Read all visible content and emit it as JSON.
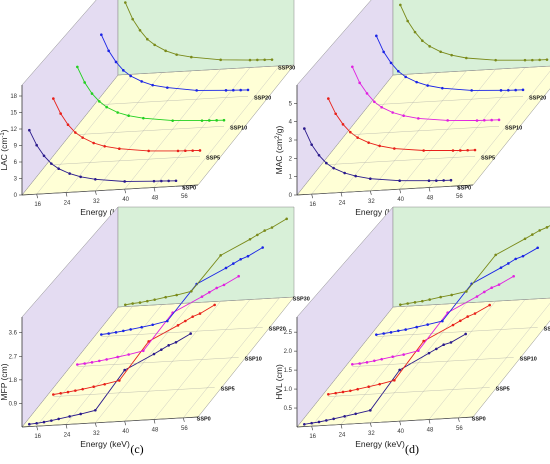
{
  "chart_data": [
    {
      "type": "line",
      "panel_label": "(a)",
      "xlabel": "Energy (keV)",
      "ylabel": "LAC (cm",
      "ylabel_sup": "-1",
      "ylabel_tail": ")",
      "ylim": [
        0,
        20
      ],
      "xticks": [
        "16",
        "24",
        "32",
        "40",
        "48",
        "56"
      ],
      "yticks": [
        "0",
        "3",
        "6",
        "9",
        "12",
        "15",
        "18"
      ],
      "x": [
        14,
        16,
        18,
        20,
        22,
        25,
        28,
        32,
        40,
        48,
        50,
        52,
        54
      ],
      "series": [
        {
          "name": "SSP0",
          "color": "#2a1a8c",
          "values": [
            11.7,
            8.9,
            6.9,
            5.4,
            4.4,
            3.4,
            2.7,
            2.1,
            1.4,
            1.15,
            1.1,
            1.05,
            1.0
          ]
        },
        {
          "name": "SSP5",
          "color": "#e8201a",
          "values": [
            12.0,
            9.2,
            7.1,
            5.6,
            4.6,
            3.5,
            2.8,
            2.2,
            1.5,
            1.2,
            1.15,
            1.1,
            1.05
          ]
        },
        {
          "name": "SSP10",
          "color": "#22d020",
          "values": [
            12.3,
            9.4,
            7.3,
            5.8,
            4.7,
            3.6,
            2.9,
            2.3,
            1.55,
            1.25,
            1.2,
            1.15,
            1.1
          ]
        },
        {
          "name": "SSP20",
          "color": "#1a24e6",
          "values": [
            12.7,
            9.7,
            7.6,
            6.0,
            4.9,
            3.8,
            3.0,
            2.4,
            1.6,
            1.3,
            1.25,
            1.2,
            1.15
          ]
        },
        {
          "name": "SSP30",
          "color": "#7a8a1a",
          "values": [
            13.1,
            10.0,
            7.9,
            6.2,
            5.1,
            3.9,
            3.1,
            2.5,
            1.7,
            1.35,
            1.3,
            1.25,
            1.2
          ]
        }
      ]
    },
    {
      "type": "line",
      "panel_label": "(b)",
      "xlabel": "Energy (keV)",
      "ylabel": "MAC (cm",
      "ylabel_sup": "2",
      "ylabel_tail": "/g)",
      "ylim": [
        0,
        6
      ],
      "xticks": [
        "16",
        "24",
        "32",
        "40",
        "48",
        "56"
      ],
      "yticks": [
        "0",
        "1",
        "2",
        "3",
        "4",
        "5"
      ],
      "x": [
        14,
        16,
        18,
        20,
        22,
        25,
        28,
        32,
        40,
        48,
        50,
        52,
        54
      ],
      "series": [
        {
          "name": "SSP0",
          "color": "#2a1a8c",
          "values": [
            3.6,
            2.7,
            2.1,
            1.65,
            1.35,
            1.05,
            0.85,
            0.66,
            0.46,
            0.37,
            0.35,
            0.34,
            0.33
          ]
        },
        {
          "name": "SSP5",
          "color": "#e8201a",
          "values": [
            3.6,
            2.75,
            2.15,
            1.7,
            1.38,
            1.07,
            0.86,
            0.67,
            0.47,
            0.38,
            0.36,
            0.35,
            0.34
          ]
        },
        {
          "name": "SSP10",
          "color": "#e020e0",
          "values": [
            3.7,
            2.8,
            2.2,
            1.72,
            1.4,
            1.08,
            0.87,
            0.68,
            0.48,
            0.38,
            0.37,
            0.36,
            0.35
          ]
        },
        {
          "name": "SSP20",
          "color": "#1a24e6",
          "values": [
            3.75,
            2.85,
            2.23,
            1.75,
            1.42,
            1.1,
            0.88,
            0.69,
            0.48,
            0.39,
            0.37,
            0.36,
            0.35
          ]
        },
        {
          "name": "SSP30",
          "color": "#7a8a1a",
          "values": [
            3.8,
            2.9,
            2.27,
            1.78,
            1.45,
            1.12,
            0.9,
            0.7,
            0.49,
            0.4,
            0.38,
            0.37,
            0.36
          ]
        }
      ]
    },
    {
      "type": "line",
      "panel_label": "(c)",
      "xlabel": "Energy (keV)",
      "ylabel": "MFP (cm)",
      "ylim": [
        0,
        4.2
      ],
      "xticks": [
        "16",
        "24",
        "32",
        "40",
        "48",
        "56"
      ],
      "yticks": [
        "0.9",
        "1.8",
        "2.7",
        "3.6"
      ],
      "x": [
        14,
        16,
        18,
        20,
        22,
        25,
        28,
        32,
        40,
        48,
        50,
        52,
        54,
        58
      ],
      "series": [
        {
          "name": "SSP0",
          "color": "#2a1a8c",
          "values": [
            0.09,
            0.11,
            0.14,
            0.18,
            0.23,
            0.3,
            0.37,
            0.48,
            1.95,
            2.5,
            2.65,
            2.8,
            2.9,
            3.2
          ]
        },
        {
          "name": "SSP5",
          "color": "#e8201a",
          "values": [
            0.08,
            0.11,
            0.14,
            0.18,
            0.22,
            0.29,
            0.36,
            0.47,
            1.9,
            2.45,
            2.6,
            2.75,
            2.85,
            3.15
          ]
        },
        {
          "name": "SSP10",
          "color": "#e020e0",
          "values": [
            0.08,
            0.1,
            0.13,
            0.17,
            0.21,
            0.28,
            0.35,
            0.46,
            1.85,
            2.4,
            2.55,
            2.7,
            2.8,
            3.1
          ]
        },
        {
          "name": "SSP20",
          "color": "#1a24e6",
          "values": [
            0.08,
            0.1,
            0.13,
            0.17,
            0.21,
            0.27,
            0.34,
            0.45,
            1.8,
            2.35,
            2.5,
            2.65,
            2.75,
            3.05
          ]
        },
        {
          "name": "SSP30",
          "color": "#7a8a1a",
          "values": [
            0.07,
            0.1,
            0.12,
            0.16,
            0.2,
            0.27,
            0.33,
            0.44,
            1.75,
            2.3,
            2.45,
            2.6,
            2.7,
            3.0
          ]
        }
      ]
    },
    {
      "type": "line",
      "panel_label": "(d)",
      "xlabel": "Energy (keV)",
      "ylabel": "HVL (cm)",
      "ylim": [
        0,
        2.9
      ],
      "xticks": [
        "16",
        "24",
        "32",
        "40",
        "48",
        "56"
      ],
      "yticks": [
        "0.5",
        "1.0",
        "1.5",
        "2.0",
        "2.5"
      ],
      "x": [
        14,
        16,
        18,
        20,
        22,
        25,
        28,
        32,
        40,
        48,
        50,
        52,
        54,
        58
      ],
      "series": [
        {
          "name": "SSP0",
          "color": "#2a1a8c",
          "values": [
            0.06,
            0.08,
            0.1,
            0.13,
            0.16,
            0.21,
            0.26,
            0.33,
            1.35,
            1.75,
            1.85,
            1.95,
            2.0,
            2.2
          ]
        },
        {
          "name": "SSP5",
          "color": "#e8201a",
          "values": [
            0.06,
            0.08,
            0.1,
            0.12,
            0.15,
            0.2,
            0.25,
            0.33,
            1.32,
            1.7,
            1.8,
            1.9,
            1.97,
            2.17
          ]
        },
        {
          "name": "SSP10",
          "color": "#e020e0",
          "values": [
            0.06,
            0.07,
            0.09,
            0.12,
            0.15,
            0.2,
            0.24,
            0.32,
            1.28,
            1.66,
            1.77,
            1.87,
            1.94,
            2.14
          ]
        },
        {
          "name": "SSP20",
          "color": "#1a24e6",
          "values": [
            0.05,
            0.07,
            0.09,
            0.12,
            0.14,
            0.19,
            0.24,
            0.31,
            1.25,
            1.63,
            1.73,
            1.84,
            1.9,
            2.1
          ]
        },
        {
          "name": "SSP30",
          "color": "#7a8a1a",
          "values": [
            0.05,
            0.07,
            0.09,
            0.11,
            0.14,
            0.19,
            0.23,
            0.3,
            1.22,
            1.6,
            1.7,
            1.8,
            1.87,
            2.07
          ]
        }
      ]
    }
  ]
}
